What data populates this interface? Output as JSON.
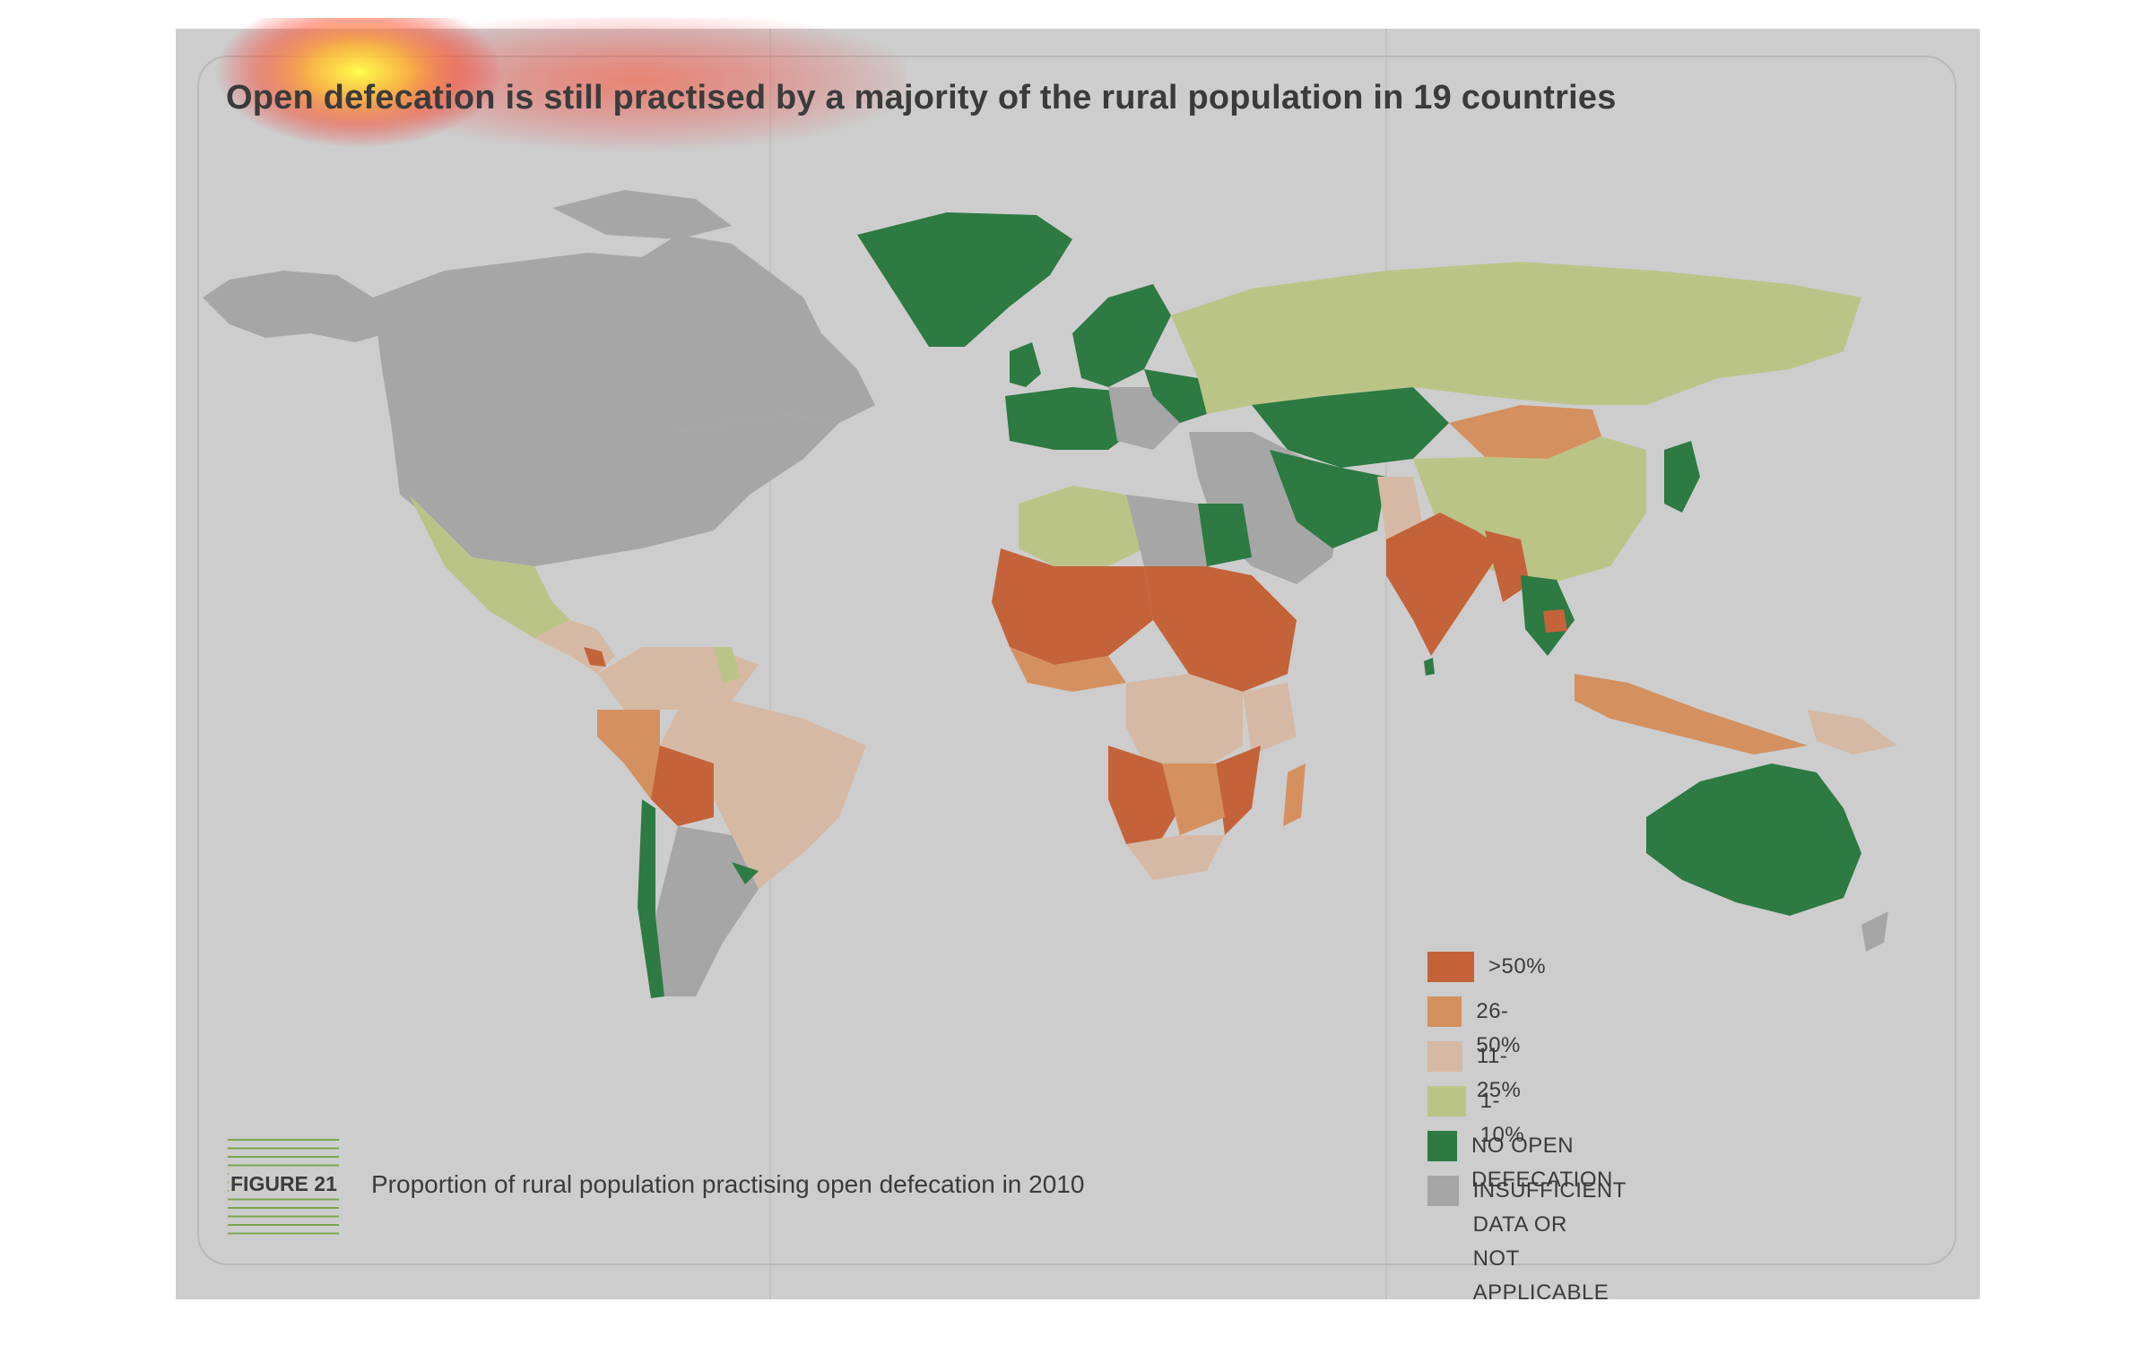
{
  "title": "Open defecation is still practised by a majority of the rural population in 19 countries",
  "figure": {
    "label": "FIGURE 21",
    "caption": "Proportion of rural population practising open defecation in 2010"
  },
  "colors": {
    "background": "#cdcdcd",
    "ocean": "#cdcdcd",
    "over_50": "#c4633a",
    "p26_50": "#d4915f",
    "p11_25": "#d6b9a4",
    "p1_10": "#bbc487",
    "none": "#2d7a42",
    "no_data": "#a6a6a6",
    "figure_lines": "#7aa64e"
  },
  "legend": [
    {
      "label": ">50%",
      "color": "#c4633a"
    },
    {
      "label": "26-50%",
      "color": "#d4915f"
    },
    {
      "label": "11-25%",
      "color": "#d6b9a4"
    },
    {
      "label": "1-10%",
      "color": "#bbc487"
    },
    {
      "label": "NO OPEN DEFECATION",
      "color": "#2d7a42"
    },
    {
      "label": "INSUFFICIENT DATA OR\nNOT APPLICABLE",
      "color": "#a6a6a6"
    }
  ]
}
